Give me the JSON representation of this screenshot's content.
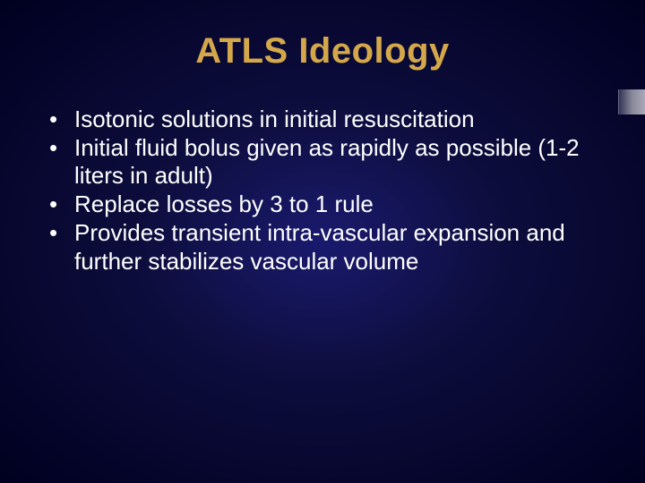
{
  "slide": {
    "title": "ATLS Ideology",
    "title_color": "#d4a84a",
    "title_fontsize": 40,
    "body_color": "#ffffff",
    "body_fontsize": 26,
    "background_gradient": {
      "center": "#1a1a6e",
      "mid": "#0d0d3d",
      "edge": "#000020"
    },
    "bullets": [
      "Isotonic solutions in initial resuscitation",
      "Initial fluid bolus given as rapidly as possible (1-2 liters in adult)",
      "Replace losses by 3 to 1 rule",
      "Provides transient intra-vascular expansion and further stabilizes vascular volume"
    ]
  }
}
